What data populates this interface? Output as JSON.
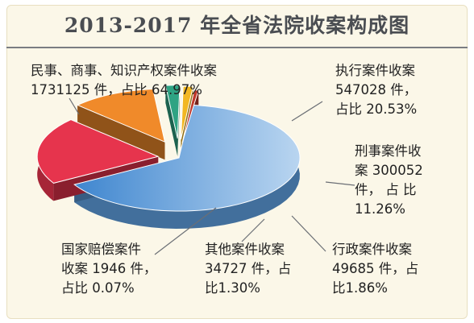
{
  "chart_data": {
    "type": "pie",
    "title": "2013-2017 年全省法院收案构成图",
    "slices": [
      {
        "key": "civil",
        "lines": [
          "民事、商事、知识产权案件收案",
          "1731125 件，占比 64.97%"
        ],
        "value": 1731125,
        "percent": 64.97,
        "color": "#5b9ad8"
      },
      {
        "key": "execution",
        "lines": [
          "执行案件收案",
          "547028  件，",
          "占比 20.53%"
        ],
        "value": 547028,
        "percent": 20.53,
        "color": "#e6344d"
      },
      {
        "key": "criminal",
        "lines": [
          "刑事案件收",
          "案 300052",
          "件， 占 比",
          "11.26%"
        ],
        "value": 300052,
        "percent": 11.26,
        "color": "#f08a2a"
      },
      {
        "key": "administrative",
        "lines": [
          "行政案件收案",
          "49685  件，占",
          "比1.86%"
        ],
        "value": 49685,
        "percent": 1.86,
        "color": "#2ea383"
      },
      {
        "key": "other",
        "lines": [
          "其他案件收案",
          "34727 件，占",
          "比1.30%"
        ],
        "value": 34727,
        "percent": 1.3,
        "color": "#f2b722"
      },
      {
        "key": "compensation",
        "lines": [
          "国家赔偿案件",
          "收案 1946 件，",
          "占比 0.07%"
        ],
        "value": 1946,
        "percent": 0.07,
        "color": "#c0392b"
      }
    ]
  }
}
